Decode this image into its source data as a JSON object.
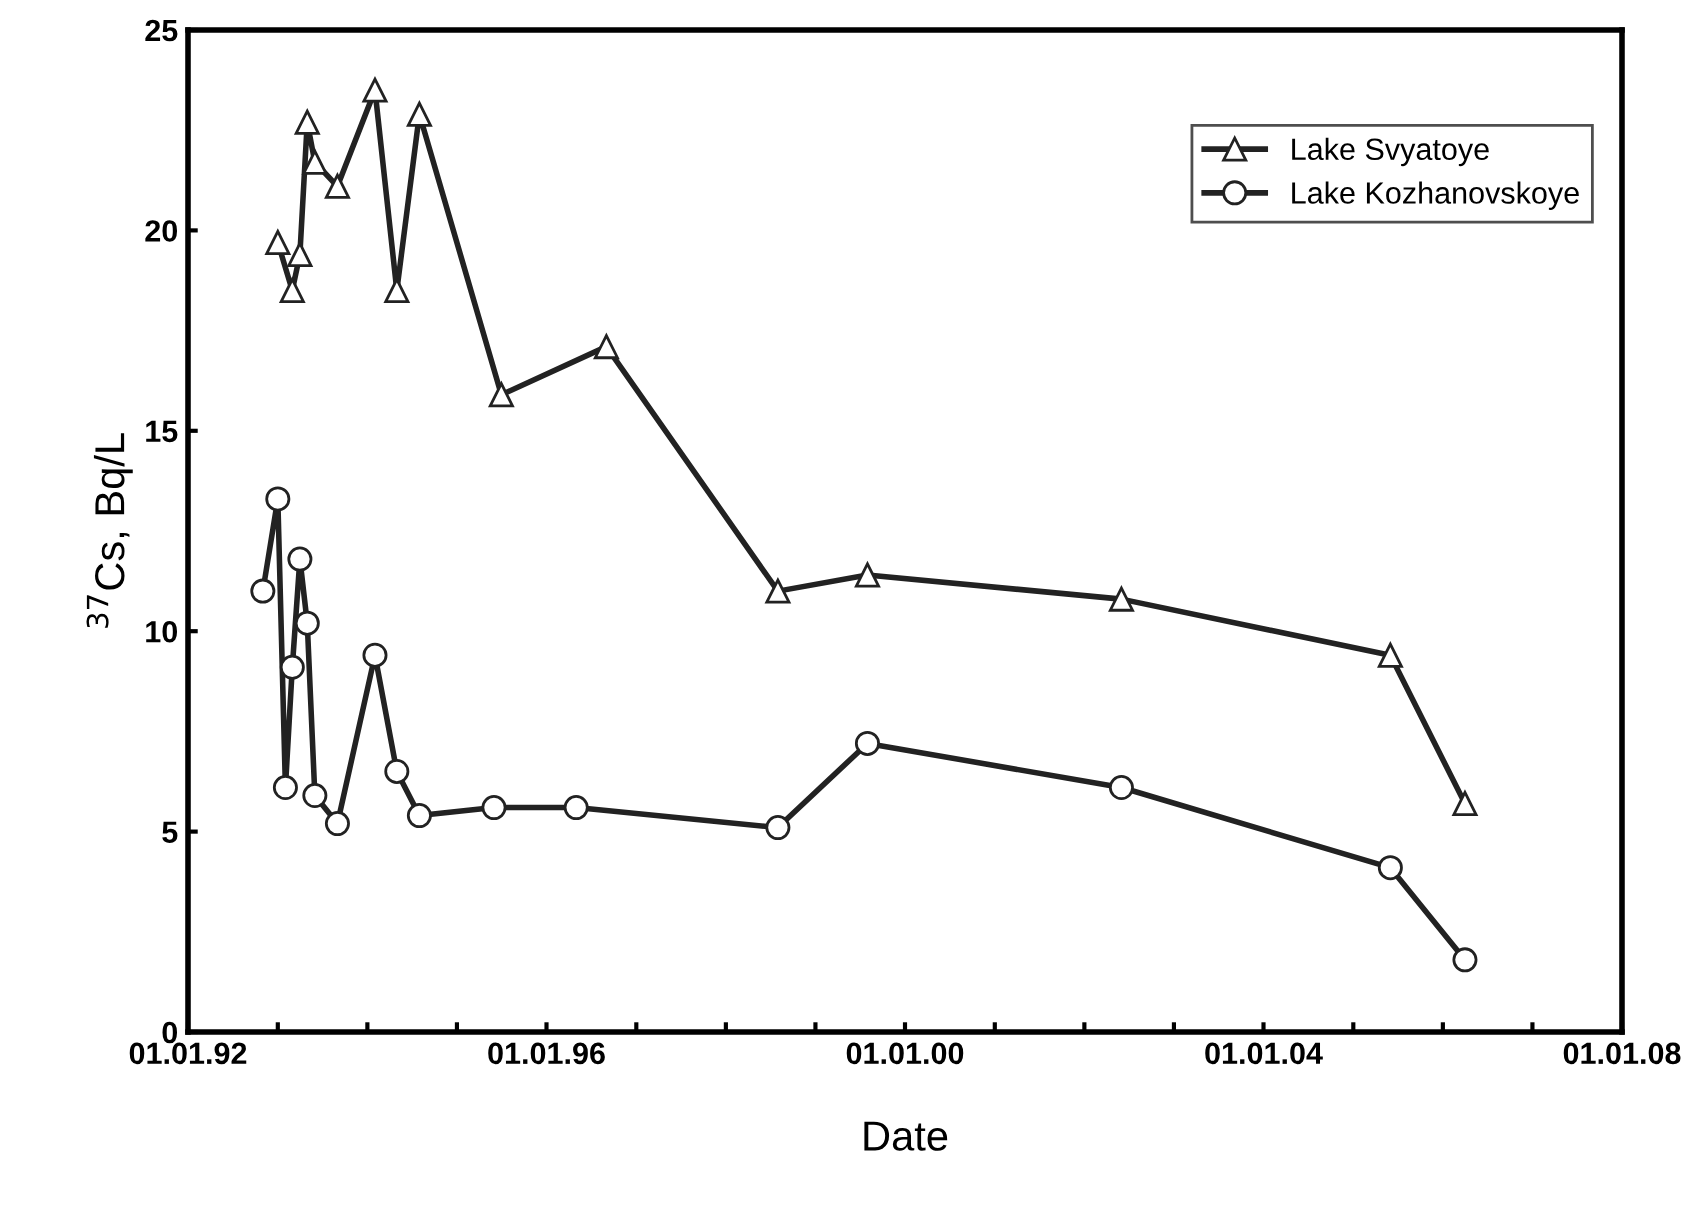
{
  "chart_data": {
    "type": "line",
    "xlabel": "Date",
    "ylabel": "$^{37}$Cs, Bq/L",
    "xlim": [
      "1992-01-01",
      "2008-01-01"
    ],
    "ylim": [
      0,
      25
    ],
    "xticks": [
      {
        "value": "1992-01-01",
        "label": "01.01.92"
      },
      {
        "value": "1993-01-01",
        "label": null
      },
      {
        "value": "1994-01-01",
        "label": null
      },
      {
        "value": "1995-01-01",
        "label": null
      },
      {
        "value": "1996-01-01",
        "label": "01.01.96"
      },
      {
        "value": "1997-01-01",
        "label": null
      },
      {
        "value": "1998-01-01",
        "label": null
      },
      {
        "value": "1999-01-01",
        "label": null
      },
      {
        "value": "2000-01-01",
        "label": "01.01.00"
      },
      {
        "value": "2001-01-01",
        "label": null
      },
      {
        "value": "2002-01-01",
        "label": null
      },
      {
        "value": "2003-01-01",
        "label": null
      },
      {
        "value": "2004-01-01",
        "label": "01.01.04"
      },
      {
        "value": "2005-01-01",
        "label": null
      },
      {
        "value": "2006-01-01",
        "label": null
      },
      {
        "value": "2007-01-01",
        "label": null
      },
      {
        "value": "2008-01-01",
        "label": "01.01.08"
      }
    ],
    "yticks": [
      0,
      5,
      10,
      15,
      20,
      25
    ],
    "grid": false,
    "legend": "top right",
    "line_style": "solid",
    "series": [
      {
        "name": "Lake Svyatoye",
        "color": "#222222",
        "marker": "triangle",
        "x": [
          "1993-01",
          "1993-03",
          "1993-04",
          "1993-05",
          "1993-06",
          "1993-09",
          "1994-02",
          "1994-05",
          "1994-08",
          "1995-07",
          "1996-09",
          "1998-08",
          "1999-08",
          "2002-06",
          "2005-06",
          "2006-04"
        ],
        "values": [
          19.7,
          18.5,
          19.4,
          22.7,
          21.7,
          21.1,
          23.5,
          18.5,
          22.9,
          15.9,
          17.1,
          11.0,
          11.4,
          10.8,
          9.4,
          5.7
        ]
      },
      {
        "name": "Lake Kozhanovskoye",
        "color": "#222222",
        "marker": "circle",
        "x": [
          "1992-11",
          "1993-01",
          "1993-02",
          "1993-03",
          "1993-04",
          "1993-05",
          "1993-06",
          "1993-09",
          "1994-02",
          "1994-05",
          "1994-08",
          "1995-06",
          "1996-05",
          "1998-08",
          "1999-08",
          "2002-06",
          "2005-06",
          "2006-04"
        ],
        "values": [
          11.0,
          13.3,
          6.1,
          9.1,
          11.8,
          10.2,
          5.9,
          5.2,
          9.4,
          6.5,
          5.4,
          5.6,
          5.6,
          5.1,
          7.2,
          6.1,
          4.1,
          1.8
        ]
      }
    ]
  }
}
